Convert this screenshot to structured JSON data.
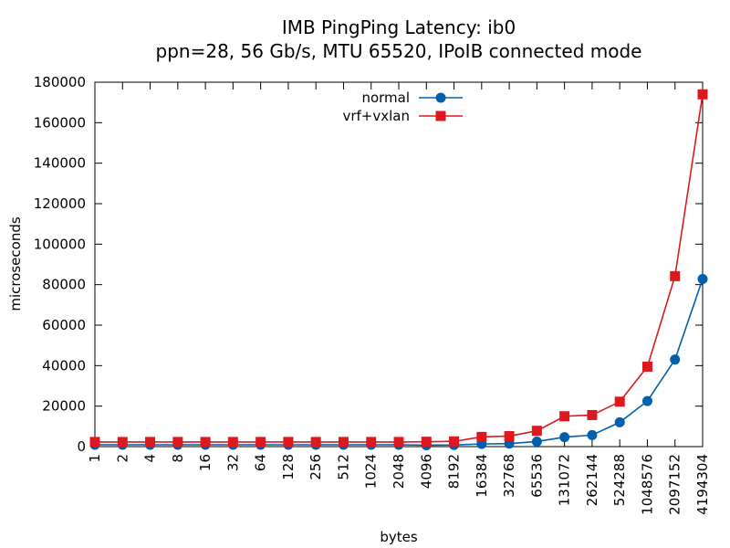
{
  "chart_data": {
    "type": "line",
    "title": "IMB PingPing Latency: ib0",
    "subtitle": "ppn=28, 56 Gb/s, MTU 65520, IPoIB connected mode",
    "xlabel": "bytes",
    "ylabel": "microseconds",
    "ylim": [
      0,
      180000
    ],
    "yticks": [
      0,
      20000,
      40000,
      60000,
      80000,
      100000,
      120000,
      140000,
      160000,
      180000
    ],
    "categories": [
      "1",
      "2",
      "4",
      "8",
      "16",
      "32",
      "64",
      "128",
      "256",
      "512",
      "1024",
      "2048",
      "4096",
      "8192",
      "16384",
      "32768",
      "65536",
      "131072",
      "262144",
      "524288",
      "1048576",
      "2097152",
      "4194304"
    ],
    "legend_position": "top-center",
    "series": [
      {
        "name": "normal",
        "color": "#0060ad",
        "marker": "circle",
        "values": [
          900,
          900,
          900,
          900,
          900,
          900,
          900,
          900,
          900,
          900,
          900,
          900,
          700,
          800,
          1300,
          1500,
          2500,
          4700,
          5700,
          12000,
          22500,
          43000,
          82800
        ]
      },
      {
        "name": "vrf+vxlan",
        "color": "#dd181f",
        "marker": "square",
        "values": [
          2300,
          2300,
          2300,
          2300,
          2300,
          2300,
          2300,
          2300,
          2300,
          2300,
          2300,
          2300,
          2400,
          2600,
          4800,
          5200,
          7800,
          15000,
          15600,
          22200,
          39500,
          84200,
          174000
        ]
      }
    ]
  }
}
